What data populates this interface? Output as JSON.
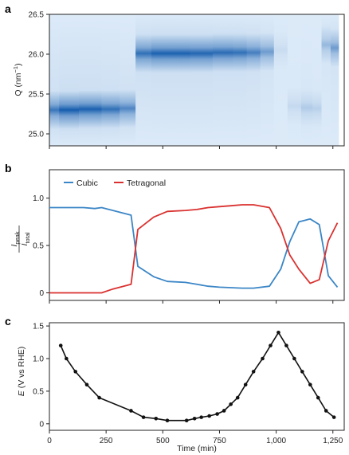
{
  "chart_data": [
    {
      "panel": "a",
      "type": "heatmap",
      "ylabel": "Q (nm⁻¹)",
      "ylabel_main": "Q (nm",
      "ylabel_sup": "−1",
      "ylabel_end": ")",
      "ylim": [
        24.85,
        26.5
      ],
      "yticks": [
        25.0,
        25.5,
        26.0,
        26.5
      ],
      "ytick_labels": [
        "25.0",
        "25.5",
        "26.0",
        "26.5"
      ],
      "x_shared_with": "c",
      "columns": [
        {
          "t_start": 0,
          "t_end": 43,
          "peak_q": 25.3,
          "intensity": 0.8
        },
        {
          "t_start": 43,
          "t_end": 130,
          "peak_q": 25.3,
          "intensity": 0.98
        },
        {
          "t_start": 130,
          "t_end": 230,
          "peak_q": 25.31,
          "intensity": 0.95
        },
        {
          "t_start": 230,
          "t_end": 310,
          "peak_q": 25.31,
          "intensity": 0.85
        },
        {
          "t_start": 310,
          "t_end": 380,
          "peak_q": 25.32,
          "intensity": 0.7
        },
        {
          "t_start": 380,
          "t_end": 450,
          "peak_q": 26.01,
          "intensity": 0.85
        },
        {
          "t_start": 450,
          "t_end": 530,
          "peak_q": 26.01,
          "intensity": 0.95
        },
        {
          "t_start": 530,
          "t_end": 620,
          "peak_q": 26.01,
          "intensity": 0.95
        },
        {
          "t_start": 620,
          "t_end": 720,
          "peak_q": 26.01,
          "intensity": 0.92
        },
        {
          "t_start": 720,
          "t_end": 810,
          "peak_q": 26.02,
          "intensity": 0.88
        },
        {
          "t_start": 810,
          "t_end": 870,
          "peak_q": 26.02,
          "intensity": 0.85
        },
        {
          "t_start": 870,
          "t_end": 930,
          "peak_q": 26.02,
          "intensity": 0.75
        },
        {
          "t_start": 930,
          "t_end": 990,
          "peak_q": 26.03,
          "intensity": 0.55
        },
        {
          "t_start": 990,
          "t_end": 1050,
          "peak_q": 26.05,
          "intensity": 0.1
        },
        {
          "t_start": 1050,
          "t_end": 1110,
          "peak_q": 25.35,
          "intensity": 0.12
        },
        {
          "t_start": 1110,
          "t_end": 1160,
          "peak_q": 25.33,
          "intensity": 0.22
        },
        {
          "t_start": 1160,
          "t_end": 1200,
          "peak_q": 25.32,
          "intensity": 0.18
        },
        {
          "t_start": 1200,
          "t_end": 1240,
          "peak_q": 26.12,
          "intensity": 0.35
        },
        {
          "t_start": 1240,
          "t_end": 1275,
          "peak_q": 26.08,
          "intensity": 0.55
        }
      ]
    },
    {
      "panel": "b",
      "type": "line",
      "ylabel_num": "I",
      "ylabel_num_sub": "peak",
      "ylabel_den": "I",
      "ylabel_den_sub": "total",
      "ylim": [
        -0.08,
        1.3
      ],
      "yticks": [
        0,
        0.5,
        1.0
      ],
      "ytick_labels": [
        "0",
        "0.5",
        "1.0"
      ],
      "legend_position": "top-left",
      "series": [
        {
          "name": "Cubic",
          "color": "#3b86c6",
          "x": [
            0,
            50,
            100,
            150,
            200,
            230,
            280,
            360,
            390,
            460,
            520,
            600,
            650,
            700,
            750,
            800,
            850,
            900,
            970,
            1020,
            1060,
            1100,
            1150,
            1190,
            1230,
            1270
          ],
          "y": [
            0.9,
            0.9,
            0.9,
            0.9,
            0.89,
            0.9,
            0.87,
            0.82,
            0.28,
            0.17,
            0.12,
            0.11,
            0.09,
            0.07,
            0.06,
            0.055,
            0.05,
            0.05,
            0.07,
            0.25,
            0.54,
            0.75,
            0.78,
            0.72,
            0.18,
            0.06
          ]
        },
        {
          "name": "Tetragonal",
          "color": "#d9312f",
          "x": [
            0,
            50,
            100,
            150,
            200,
            230,
            280,
            360,
            390,
            460,
            520,
            600,
            650,
            700,
            750,
            800,
            850,
            900,
            970,
            1020,
            1060,
            1100,
            1150,
            1190,
            1230,
            1270
          ],
          "y": [
            0.0,
            0.0,
            0.0,
            0.0,
            0.0,
            0.0,
            0.04,
            0.09,
            0.67,
            0.8,
            0.86,
            0.87,
            0.88,
            0.9,
            0.91,
            0.92,
            0.93,
            0.93,
            0.9,
            0.68,
            0.4,
            0.25,
            0.1,
            0.14,
            0.55,
            0.74
          ]
        }
      ]
    },
    {
      "panel": "c",
      "type": "line",
      "xlabel": "Time (min)",
      "ylabel": "E (V vs RHE)",
      "ylabel_italic": "E",
      "ylabel_rest": " (V vs RHE)",
      "xlim": [
        0,
        1300
      ],
      "ylim": [
        -0.1,
        1.55
      ],
      "xticks": [
        0,
        250,
        500,
        750,
        1000,
        1250
      ],
      "xtick_labels": [
        "0",
        "250",
        "500",
        "750",
        "1,000",
        "1,250"
      ],
      "yticks": [
        0,
        0.5,
        1.0,
        1.5
      ],
      "ytick_labels": [
        "0",
        "0.5",
        "1.0",
        "1.5"
      ],
      "series": [
        {
          "name": "",
          "color": "#111111",
          "x": [
            50,
            75,
            115,
            165,
            220,
            360,
            415,
            470,
            520,
            605,
            640,
            670,
            705,
            740,
            770,
            800,
            830,
            865,
            900,
            940,
            975,
            1010,
            1045,
            1080,
            1115,
            1150,
            1185,
            1220,
            1255
          ],
          "y": [
            1.2,
            1.0,
            0.8,
            0.6,
            0.4,
            0.2,
            0.1,
            0.08,
            0.05,
            0.05,
            0.08,
            0.1,
            0.12,
            0.15,
            0.2,
            0.3,
            0.4,
            0.6,
            0.8,
            1.0,
            1.2,
            1.4,
            1.2,
            1.0,
            0.8,
            0.6,
            0.4,
            0.2,
            0.1
          ]
        }
      ]
    }
  ],
  "panel_letters": [
    "a",
    "b",
    "c"
  ]
}
